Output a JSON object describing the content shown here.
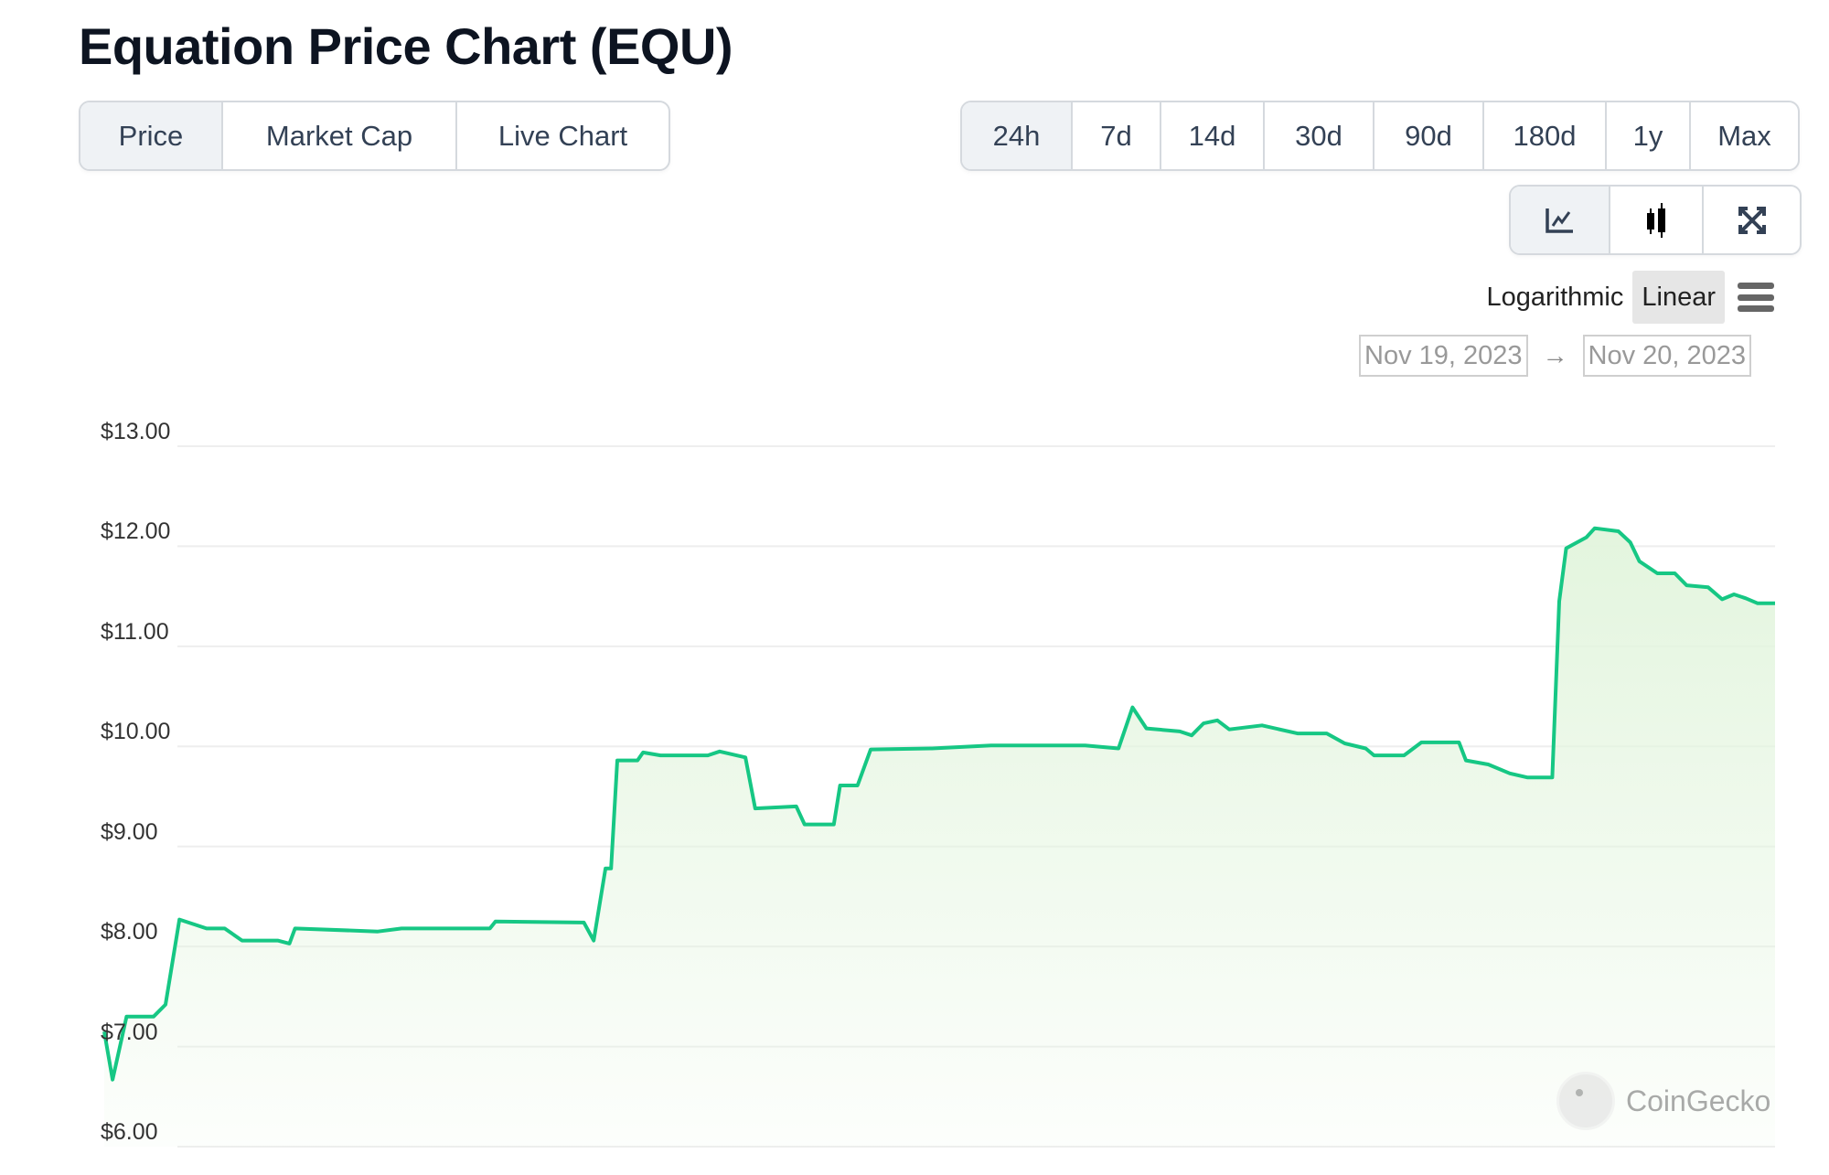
{
  "header": {
    "title": "Equation Price Chart (EQU)"
  },
  "tabs": [
    {
      "label": "Price",
      "active": true
    },
    {
      "label": "Market Cap",
      "active": false
    },
    {
      "label": "Live Chart",
      "active": false
    }
  ],
  "ranges": [
    {
      "label": "24h",
      "active": true
    },
    {
      "label": "7d",
      "active": false
    },
    {
      "label": "14d",
      "active": false
    },
    {
      "label": "30d",
      "active": false
    },
    {
      "label": "90d",
      "active": false
    },
    {
      "label": "180d",
      "active": false
    },
    {
      "label": "1y",
      "active": false
    },
    {
      "label": "Max",
      "active": false
    }
  ],
  "views": [
    {
      "icon": "line-chart-icon",
      "active": true
    },
    {
      "icon": "candlestick-icon",
      "active": false
    },
    {
      "icon": "expand-icon",
      "active": false
    }
  ],
  "scale": {
    "logarithmic": "Logarithmic",
    "linear": "Linear",
    "selected": "Linear",
    "menu_icon": "hamburger-menu-icon"
  },
  "date_range": {
    "from": "Nov 19, 2023",
    "arrow": "→",
    "to": "Nov 20, 2023"
  },
  "watermark": "CoinGecko",
  "colors": {
    "line": "#16c784",
    "fill": "#e3f5de",
    "grid": "#eeeeee"
  },
  "chart_data": {
    "type": "area",
    "title": "",
    "xlabel": "",
    "ylabel": "",
    "x_unit": "hours",
    "xlim": [
      0,
      24
    ],
    "ylim": [
      6,
      13
    ],
    "scale": "linear",
    "grid": true,
    "yticks": [
      "$13.00",
      "$12.00",
      "$11.00",
      "$10.00",
      "$9.00",
      "$8.00",
      "$7.00",
      "$6.00"
    ],
    "ytick_values": [
      13,
      12,
      11,
      10,
      9,
      8,
      7,
      6
    ],
    "series": [
      {
        "x": [
          0,
          0.12,
          0.32,
          0.71,
          0.88,
          1.08,
          1.3,
          1.47,
          1.73,
          1.98,
          2.49,
          2.66,
          2.74,
          3.93,
          4.27,
          5.54,
          5.62,
          6.89,
          7.03,
          7.2,
          7.28,
          7.37,
          7.66,
          7.74,
          7.99,
          8.67,
          8.84,
          9.21,
          9.35,
          9.94,
          10.06,
          10.48,
          10.57,
          10.82,
          11.01,
          11.89,
          12.74,
          14.09,
          14.57,
          14.77,
          14.97,
          15.45,
          15.62,
          15.79,
          15.99,
          16.16,
          16.63,
          17.14,
          17.56,
          17.82,
          18.12,
          18.24,
          18.67,
          18.92,
          19.46,
          19.56,
          19.88,
          20.19,
          20.44,
          20.8,
          20.9,
          21.0,
          21.29,
          21.41,
          21.75,
          21.92,
          22.05,
          22.31,
          22.56,
          22.73,
          23.04,
          23.24,
          23.41,
          23.58,
          23.75,
          24
        ],
        "y": [
          7.15,
          6.67,
          7.3,
          7.3,
          7.42,
          8.27,
          8.22,
          8.18,
          8.18,
          8.06,
          8.06,
          8.03,
          8.18,
          8.15,
          8.18,
          8.18,
          8.25,
          8.24,
          8.06,
          8.78,
          8.78,
          9.86,
          9.86,
          9.94,
          9.91,
          9.91,
          9.95,
          9.89,
          9.38,
          9.4,
          9.22,
          9.22,
          9.61,
          9.61,
          9.97,
          9.98,
          10.01,
          10.01,
          9.98,
          10.39,
          10.18,
          10.15,
          10.11,
          10.23,
          10.26,
          10.17,
          10.21,
          10.13,
          10.13,
          10.03,
          9.98,
          9.91,
          9.91,
          10.04,
          10.04,
          9.86,
          9.82,
          9.73,
          9.69,
          9.69,
          11.45,
          11.98,
          12.09,
          12.18,
          12.15,
          12.04,
          11.85,
          11.73,
          11.73,
          11.61,
          11.59,
          11.47,
          11.52,
          11.48,
          11.43,
          11.43
        ]
      }
    ]
  }
}
